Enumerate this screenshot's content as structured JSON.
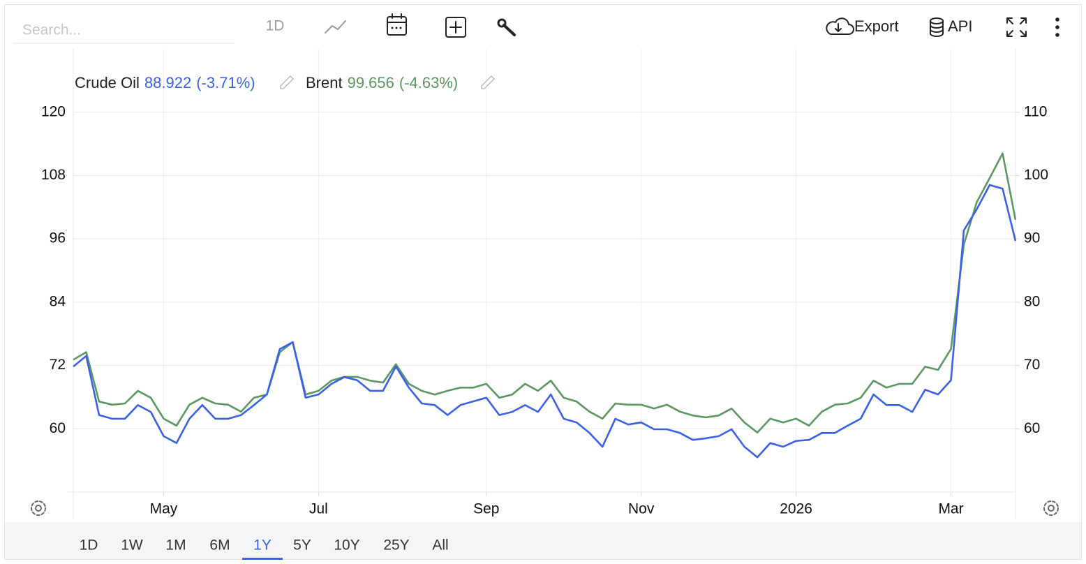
{
  "toolbar": {
    "search_placeholder": "Search...",
    "interval": "1D",
    "export": "Export",
    "api": "API"
  },
  "range_buttons": [
    "1D",
    "1W",
    "1M",
    "6M",
    "1Y",
    "5Y",
    "10Y",
    "25Y",
    "All"
  ],
  "selected_range": "1Y",
  "chart_data": {
    "type": "line",
    "categories": [
      null,
      null,
      null,
      null,
      null,
      null,
      null,
      "May",
      null,
      null,
      null,
      null,
      null,
      null,
      null,
      null,
      null,
      null,
      null,
      "Jul",
      null,
      null,
      null,
      null,
      null,
      null,
      null,
      null,
      null,
      null,
      null,
      null,
      "Sep",
      null,
      null,
      null,
      null,
      null,
      null,
      null,
      null,
      null,
      null,
      null,
      "Nov",
      null,
      null,
      null,
      null,
      null,
      null,
      null,
      null,
      null,
      null,
      null,
      "2026",
      null,
      null,
      null,
      null,
      null,
      null,
      null,
      null,
      null,
      null,
      null,
      "Mar",
      null,
      null,
      null,
      null,
      null
    ],
    "series": [
      {
        "name": "Crude Oil",
        "color": "#3a62e8",
        "legend_value": "88.922",
        "legend_change": "(-3.71%)",
        "values": [
          71.8,
          73.8,
          62.6,
          61.9,
          61.9,
          64.5,
          63.2,
          58.6,
          57.3,
          61.9,
          64.5,
          61.9,
          61.9,
          62.6,
          64.5,
          66.5,
          75.1,
          76.4,
          65.9,
          66.5,
          68.5,
          69.8,
          69.2,
          67.2,
          67.2,
          71.8,
          67.8,
          64.8,
          64.5,
          62.6,
          64.5,
          65.2,
          65.9,
          62.6,
          63.2,
          64.5,
          63.2,
          66.5,
          61.9,
          61.2,
          59.2,
          56.6,
          61.9,
          60.8,
          61.2,
          59.9,
          59.9,
          59.2,
          57.9,
          58.2,
          58.6,
          59.9,
          56.6,
          54.6,
          57.3,
          56.6,
          57.7,
          57.9,
          59.2,
          59.2,
          60.6,
          61.9,
          66.5,
          64.5,
          64.5,
          63.2,
          67.4,
          66.5,
          69.2,
          97.6,
          101.6,
          106.2,
          105.5,
          95.6
        ]
      },
      {
        "name": "Brent",
        "color": "#5b9962",
        "axis": "y2",
        "legend_value": "99.656",
        "legend_change": "(-4.63%)",
        "values": [
          70.9,
          72.1,
          64.3,
          63.8,
          64.0,
          66.0,
          64.9,
          61.6,
          60.5,
          63.8,
          64.9,
          64.0,
          63.8,
          62.7,
          64.9,
          65.4,
          72.1,
          73.7,
          65.4,
          66.0,
          67.6,
          68.2,
          68.2,
          67.6,
          67.3,
          70.2,
          67.1,
          66.0,
          65.4,
          66.0,
          66.5,
          66.5,
          67.1,
          64.9,
          65.4,
          67.1,
          66.0,
          67.6,
          64.9,
          64.3,
          62.7,
          61.6,
          64.0,
          63.8,
          63.8,
          63.2,
          63.8,
          62.7,
          62.1,
          61.8,
          62.1,
          63.2,
          61.0,
          59.4,
          61.6,
          61.0,
          61.6,
          60.5,
          62.7,
          63.8,
          64.0,
          64.9,
          67.6,
          66.5,
          67.1,
          67.1,
          69.8,
          69.3,
          72.6,
          89.1,
          95.8,
          99.6,
          103.5,
          93.0
        ]
      }
    ],
    "ylim": [
      48,
      132
    ],
    "yticks": [
      60,
      72,
      84,
      96,
      108,
      120
    ],
    "y2lim": [
      50,
      120
    ],
    "y2ticks": [
      60,
      70,
      80,
      90,
      100,
      110
    ],
    "grid": true
  }
}
